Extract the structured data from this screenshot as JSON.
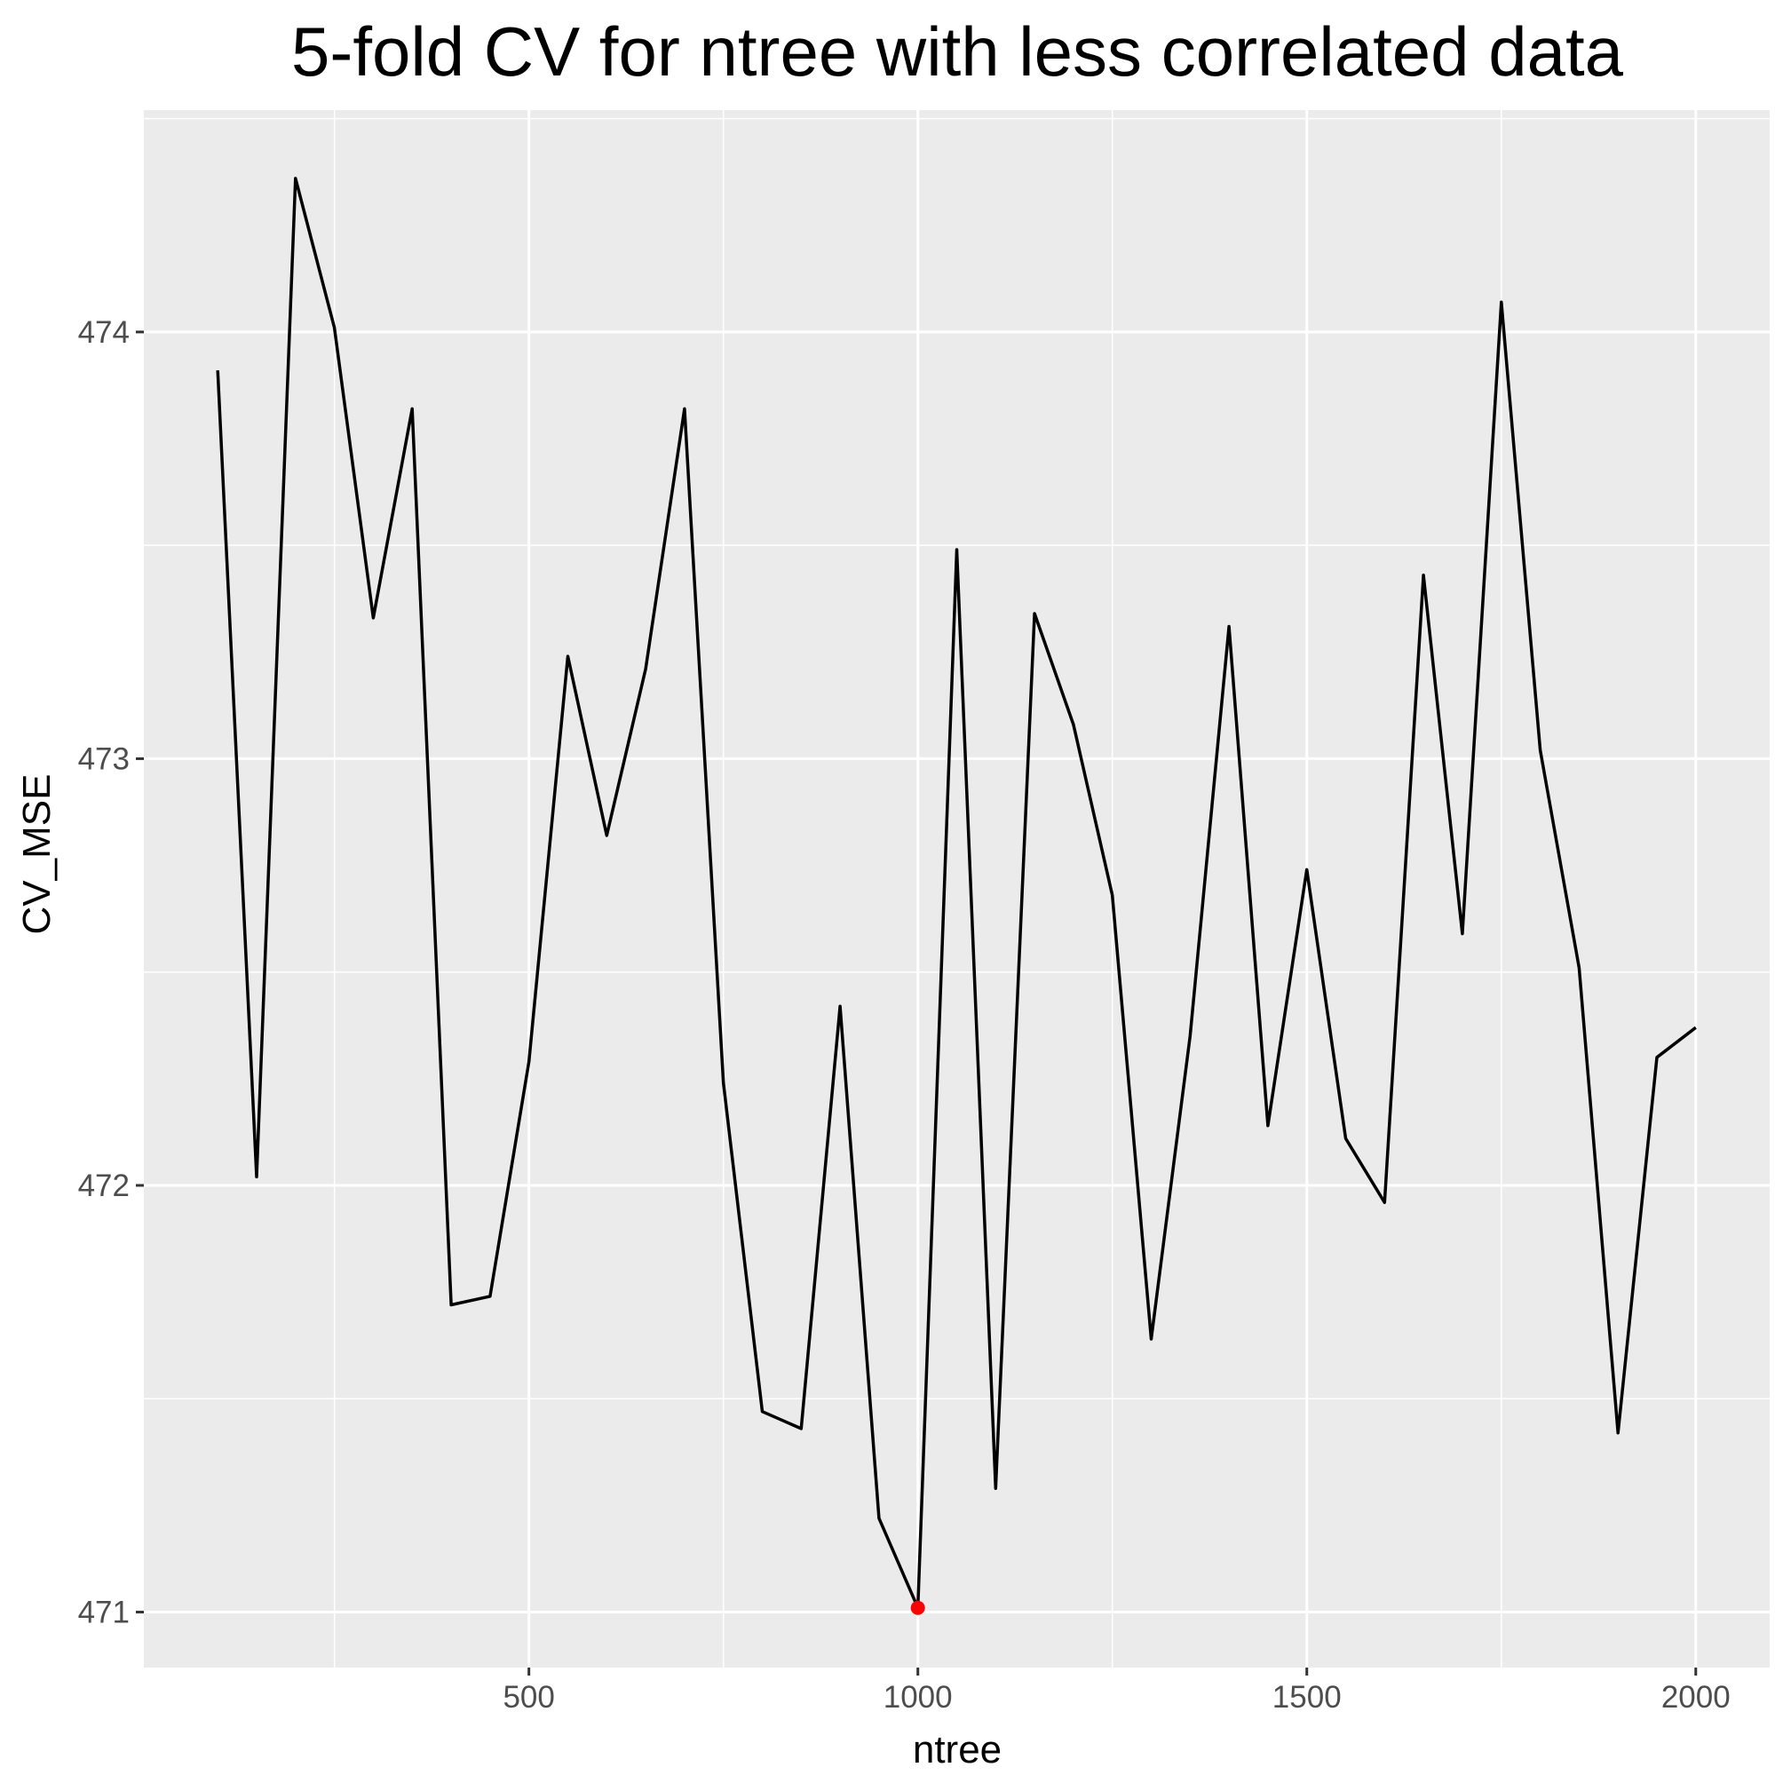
{
  "chart_data": {
    "type": "line",
    "title": "5-fold CV for ntree with less correlated data",
    "xlabel": "ntree",
    "ylabel": "CV_MSE",
    "xlim": [
      5,
      2095
    ],
    "ylim": [
      470.87,
      474.52
    ],
    "x_ticks": [
      500,
      1000,
      1500,
      2000
    ],
    "x_tick_labels": [
      "500",
      "1000",
      "1500",
      "2000"
    ],
    "y_ticks": [
      471,
      472,
      473,
      474
    ],
    "y_tick_labels": [
      "471",
      "472",
      "473",
      "474"
    ],
    "grid": true,
    "legend": "none",
    "series": [
      {
        "color": "#000000",
        "x": [
          100,
          150,
          200,
          250,
          300,
          350,
          400,
          450,
          500,
          550,
          600,
          650,
          700,
          750,
          800,
          850,
          900,
          950,
          1000,
          1050,
          1100,
          1150,
          1200,
          1250,
          1300,
          1350,
          1400,
          1450,
          1500,
          1550,
          1600,
          1650,
          1700,
          1750,
          1800,
          1850,
          1900,
          1950,
          2000
        ],
        "y": [
          473.91,
          472.02,
          474.36,
          474.01,
          473.33,
          473.82,
          471.72,
          471.74,
          472.29,
          473.24,
          472.82,
          473.21,
          473.82,
          472.24,
          471.47,
          471.43,
          472.42,
          471.22,
          471.01,
          473.49,
          471.29,
          473.34,
          473.08,
          472.68,
          471.64,
          472.35,
          473.31,
          472.14,
          472.74,
          472.11,
          471.96,
          473.43,
          472.59,
          474.07,
          473.02,
          472.51,
          471.42,
          472.3,
          472.37
        ]
      }
    ],
    "highlight_point": {
      "x": 1000,
      "y": 471.01,
      "color": "#FF0000"
    }
  }
}
